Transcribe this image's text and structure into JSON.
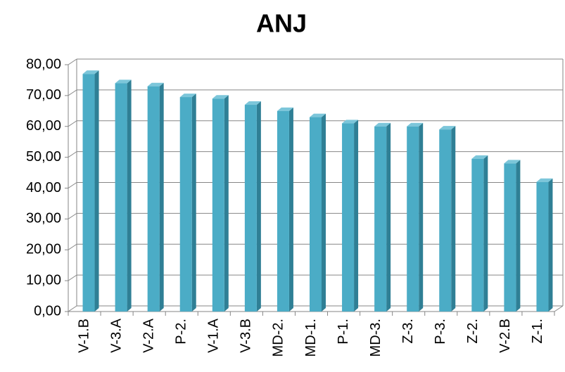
{
  "chart_data": {
    "type": "bar3d",
    "title": "ANJ",
    "categories": [
      "V-1.B",
      "V-3.A",
      "V-2.A",
      "P-2.",
      "V-1.A",
      "V-3.B",
      "MD-2.",
      "MD-1.",
      "P-1.",
      "MD-3.",
      "Z-3.",
      "P-3.",
      "Z-2.",
      "V-2.B",
      "Z-1."
    ],
    "values": [
      77,
      74,
      73,
      69.5,
      69,
      67,
      65,
      63,
      61,
      60,
      60,
      59,
      49.5,
      48,
      42
    ],
    "color": "#4bacc6",
    "ylim": [
      0,
      80
    ],
    "yticks": [
      {
        "value": 0,
        "label": "0,00"
      },
      {
        "value": 10,
        "label": "10,00"
      },
      {
        "value": 20,
        "label": "20,00"
      },
      {
        "value": 30,
        "label": "30,00"
      },
      {
        "value": 40,
        "label": "40,00"
      },
      {
        "value": 50,
        "label": "50,00"
      },
      {
        "value": 60,
        "label": "60,00"
      },
      {
        "value": 70,
        "label": "70,00"
      },
      {
        "value": 80,
        "label": "80,00"
      }
    ],
    "grid": true
  }
}
